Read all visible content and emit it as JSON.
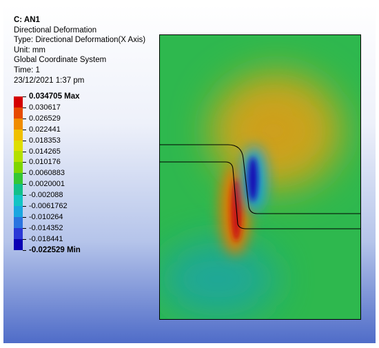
{
  "info": {
    "title": "C: AN1",
    "lines": [
      "Directional Deformation",
      "Type: Directional Deformation(X Axis)",
      "Unit: mm",
      "Global Coordinate System",
      "Time: 1",
      "23/12/2021 1:37 pm"
    ]
  },
  "legend": {
    "max_label": "0.034705 Max",
    "min_label": "-0.022529 Min",
    "values": [
      "0.030617",
      "0.026529",
      "0.022441",
      "0.018353",
      "0.014265",
      "0.010176",
      "0.0060883",
      "0.0020001",
      "-0.002088",
      "-0.0061762",
      "-0.010264",
      "-0.014352",
      "-0.018441"
    ],
    "colors": [
      "#d40000",
      "#e64a00",
      "#f08c00",
      "#f0c000",
      "#dede00",
      "#b4e000",
      "#7ed600",
      "#35c735",
      "#12c08a",
      "#12c4c4",
      "#1aa6e0",
      "#2a74e0",
      "#2a38d6",
      "#0a00b4"
    ]
  },
  "contour_colors": {
    "background": "#2eb84e",
    "positive_lobe": "#c8a81e",
    "max": "#c81414",
    "min": "#1410b4",
    "negative_lobe": "#1ea6a0"
  }
}
